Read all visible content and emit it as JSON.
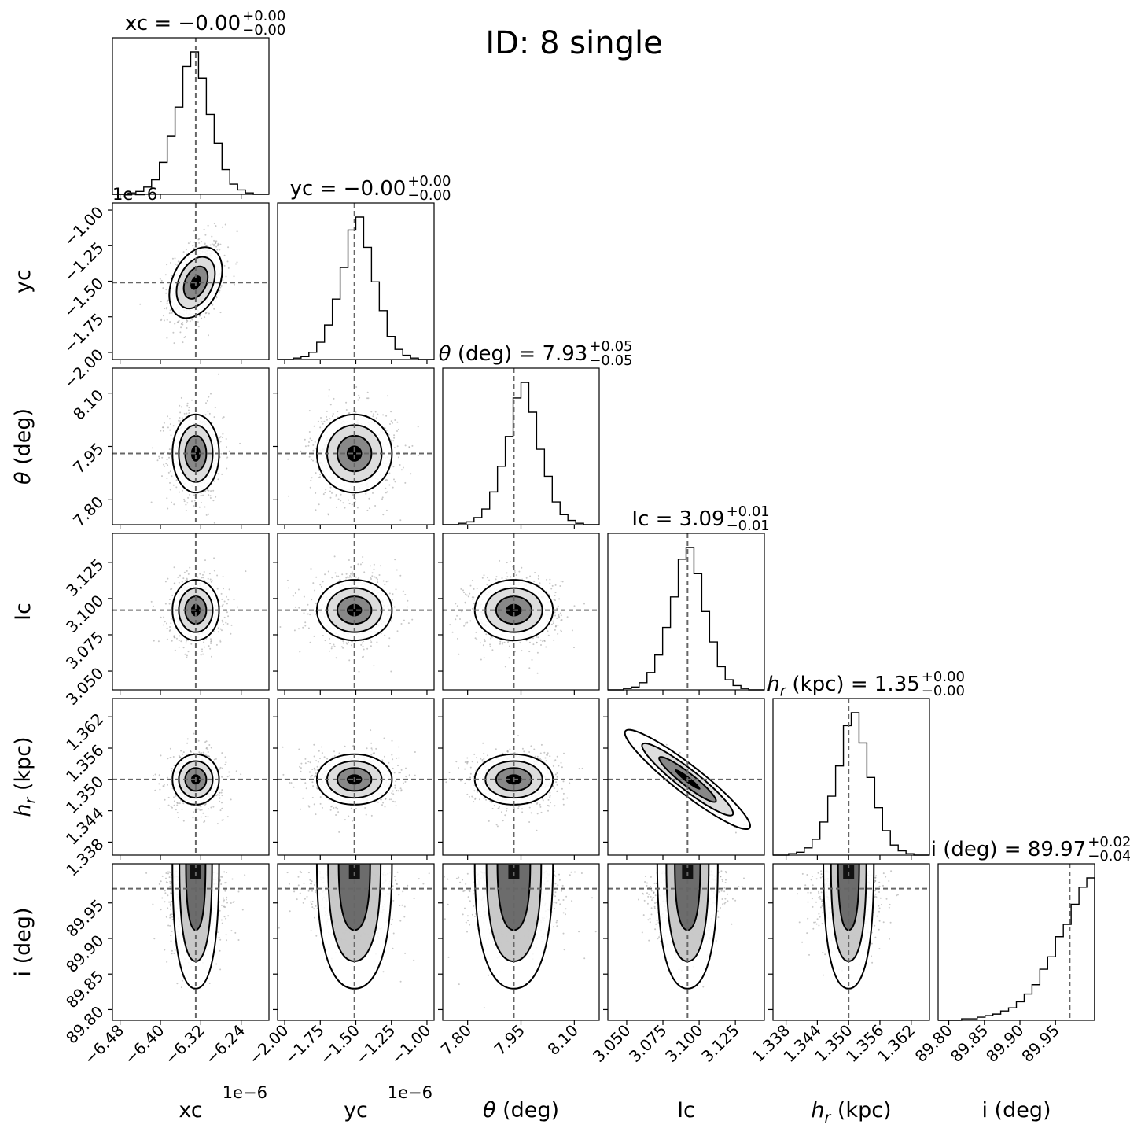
{
  "figure_title": "ID: 8  single",
  "chart_data": {
    "type": "corner",
    "grid": false,
    "params": [
      {
        "key": "xc",
        "label": "xc",
        "title_main": "xc = −0.00",
        "title_sup": "+0.00",
        "title_sub": "−0.00",
        "range": [
          -6.495,
          -6.185
        ],
        "median": -6.33,
        "sigma": 0.021,
        "ticks": [
          -6.48,
          -6.4,
          -6.32,
          -6.24
        ],
        "tick_labels": [
          "−6.48",
          "−6.40",
          "−6.32",
          "−6.24"
        ],
        "offset_text": "1e−6"
      },
      {
        "key": "yc",
        "label": "yc",
        "title_main": "yc = −0.00",
        "title_sup": "+0.00",
        "title_sub": "−0.00",
        "range": [
          -2.05,
          -0.95
        ],
        "median": -1.51,
        "sigma": 0.12,
        "ticks": [
          -2.0,
          -1.75,
          -1.5,
          -1.25,
          -1.0
        ],
        "tick_labels": [
          "−2.00",
          "−1.75",
          "−1.50",
          "−1.25",
          "−1.00"
        ],
        "offset_text": "1e−6"
      },
      {
        "key": "theta",
        "label": "θ (deg)",
        "title_main": "θ (deg) = 7.93",
        "title_sup": "+0.05",
        "title_sub": "−0.05",
        "range": [
          7.73,
          8.17
        ],
        "median": 7.93,
        "sigma": 0.05,
        "ticks": [
          7.8,
          7.95,
          8.1
        ],
        "tick_labels": [
          "7.80",
          "7.95",
          "8.10"
        ]
      },
      {
        "key": "Ic",
        "label": "Ic",
        "title_main": "Ic = 3.09",
        "title_sup": "+0.01",
        "title_sub": "−0.01",
        "range": [
          3.037,
          3.145
        ],
        "median": 3.092,
        "sigma": 0.0095,
        "ticks": [
          3.05,
          3.075,
          3.1,
          3.125
        ],
        "tick_labels": [
          "3.050",
          "3.075",
          "3.100",
          "3.125"
        ]
      },
      {
        "key": "hr",
        "label": "h_r (kpc)",
        "title_main": "h_r (kpc) = 1.35",
        "title_sup": "+0.00",
        "title_sub": "−0.00",
        "range": [
          1.3355,
          1.3655
        ],
        "median": 1.35,
        "sigma": 0.0022,
        "ticks": [
          1.338,
          1.344,
          1.35,
          1.356,
          1.362
        ],
        "tick_labels": [
          "1.338",
          "1.344",
          "1.350",
          "1.356",
          "1.362"
        ]
      },
      {
        "key": "i",
        "label": "i (deg)",
        "title_main": "i (deg) = 89.97",
        "title_sup": "+0.02",
        "title_sub": "−0.04",
        "range": [
          89.785,
          90.005
        ],
        "median": 89.97,
        "sigma": 0.035,
        "ticks": [
          89.8,
          89.85,
          89.9,
          89.95
        ],
        "tick_labels": [
          "89.80",
          "89.85",
          "89.90",
          "89.95"
        ]
      }
    ],
    "correlations": {
      "xc|yc": 0.35,
      "Ic|hr": -0.93
    },
    "histograms": {
      "xc": [
        0,
        0,
        1,
        2,
        5,
        10,
        22,
        40,
        60,
        88,
        98,
        80,
        55,
        35,
        17,
        7,
        3,
        1,
        0,
        0
      ],
      "yc": [
        0,
        0,
        1,
        2,
        5,
        12,
        24,
        42,
        64,
        90,
        99,
        78,
        54,
        34,
        16,
        7,
        3,
        1,
        0,
        0
      ],
      "theta": [
        0,
        0,
        1,
        2,
        5,
        11,
        23,
        41,
        62,
        89,
        100,
        79,
        53,
        34,
        16,
        7,
        3,
        1,
        0,
        0
      ],
      "Ic": [
        0,
        0,
        1,
        2,
        5,
        12,
        24,
        43,
        64,
        90,
        98,
        80,
        54,
        33,
        16,
        7,
        3,
        1,
        0,
        0
      ],
      "hr": [
        0,
        0,
        1,
        2,
        5,
        11,
        23,
        41,
        62,
        90,
        99,
        78,
        54,
        33,
        17,
        7,
        3,
        1,
        0,
        0
      ],
      "i": [
        0,
        0,
        0,
        1,
        1,
        2,
        3,
        4,
        6,
        8,
        12,
        17,
        23,
        33,
        41,
        54,
        62,
        75,
        86,
        92
      ]
    }
  }
}
